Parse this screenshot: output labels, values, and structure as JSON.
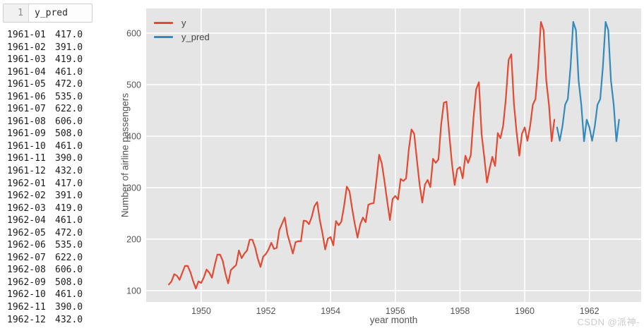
{
  "editor": {
    "cell": {
      "line_number": "1",
      "code": "y_pred"
    },
    "output_rows": [
      {
        "date": "1961-01",
        "value": "417.0"
      },
      {
        "date": "1961-02",
        "value": "391.0"
      },
      {
        "date": "1961-03",
        "value": "419.0"
      },
      {
        "date": "1961-04",
        "value": "461.0"
      },
      {
        "date": "1961-05",
        "value": "472.0"
      },
      {
        "date": "1961-06",
        "value": "535.0"
      },
      {
        "date": "1961-07",
        "value": "622.0"
      },
      {
        "date": "1961-08",
        "value": "606.0"
      },
      {
        "date": "1961-09",
        "value": "508.0"
      },
      {
        "date": "1961-10",
        "value": "461.0"
      },
      {
        "date": "1961-11",
        "value": "390.0"
      },
      {
        "date": "1961-12",
        "value": "432.0"
      },
      {
        "date": "1962-01",
        "value": "417.0"
      },
      {
        "date": "1962-02",
        "value": "391.0"
      },
      {
        "date": "1962-03",
        "value": "419.0"
      },
      {
        "date": "1962-04",
        "value": "461.0"
      },
      {
        "date": "1962-05",
        "value": "472.0"
      },
      {
        "date": "1962-06",
        "value": "535.0"
      },
      {
        "date": "1962-07",
        "value": "622.0"
      },
      {
        "date": "1962-08",
        "value": "606.0"
      },
      {
        "date": "1962-09",
        "value": "508.0"
      },
      {
        "date": "1962-10",
        "value": "461.0"
      },
      {
        "date": "1962-11",
        "value": "390.0"
      },
      {
        "date": "1962-12",
        "value": "432.0"
      }
    ]
  },
  "watermark": {
    "text": "CSDN @派神-"
  },
  "chart_data": {
    "type": "line",
    "title": "",
    "xlabel": "year month",
    "ylabel": "Number of airline passengers",
    "xlim": [
      1948.3,
      1963.6
    ],
    "ylim": [
      78,
      648
    ],
    "xticks": [
      1950,
      1952,
      1954,
      1956,
      1958,
      1960,
      1962
    ],
    "yticks": [
      100,
      200,
      300,
      400,
      500,
      600
    ],
    "grid": true,
    "legend_position": "upper left",
    "plot_bg": "#e5e5e5",
    "grid_color": "#ffffff",
    "tick_color": "#555555",
    "series": [
      {
        "name": "y",
        "color": "#E24A33",
        "x_start": 1949.0,
        "x_step_years": 0.0833333,
        "values": [
          112,
          118,
          132,
          129,
          121,
          135,
          148,
          148,
          136,
          119,
          104,
          118,
          115,
          126,
          141,
          135,
          125,
          149,
          170,
          170,
          158,
          133,
          114,
          140,
          145,
          150,
          178,
          163,
          172,
          178,
          199,
          199,
          184,
          162,
          146,
          166,
          171,
          180,
          193,
          181,
          183,
          218,
          230,
          242,
          209,
          191,
          172,
          194,
          196,
          196,
          236,
          235,
          229,
          243,
          264,
          272,
          237,
          211,
          180,
          201,
          204,
          188,
          235,
          227,
          234,
          264,
          302,
          293,
          259,
          229,
          203,
          229,
          242,
          233,
          267,
          269,
          270,
          315,
          364,
          347,
          312,
          274,
          237,
          278,
          284,
          277,
          317,
          313,
          318,
          374,
          413,
          405,
          355,
          306,
          271,
          306,
          315,
          301,
          356,
          348,
          355,
          422,
          465,
          467,
          404,
          347,
          305,
          336,
          340,
          318,
          362,
          348,
          363,
          435,
          491,
          505,
          404,
          359,
          310,
          337,
          360,
          342,
          406,
          396,
          420,
          472,
          548,
          559,
          463,
          407,
          362,
          405,
          417,
          391,
          419,
          461,
          472,
          535,
          622,
          606,
          508,
          461,
          390,
          432
        ]
      },
      {
        "name": "y_pred",
        "color": "#348ABD",
        "x_start": 1961.0,
        "x_step_years": 0.0833333,
        "values": [
          417,
          391,
          419,
          461,
          472,
          535,
          622,
          606,
          508,
          461,
          390,
          432,
          417,
          391,
          419,
          461,
          472,
          535,
          622,
          606,
          508,
          461,
          390,
          432
        ]
      }
    ]
  }
}
